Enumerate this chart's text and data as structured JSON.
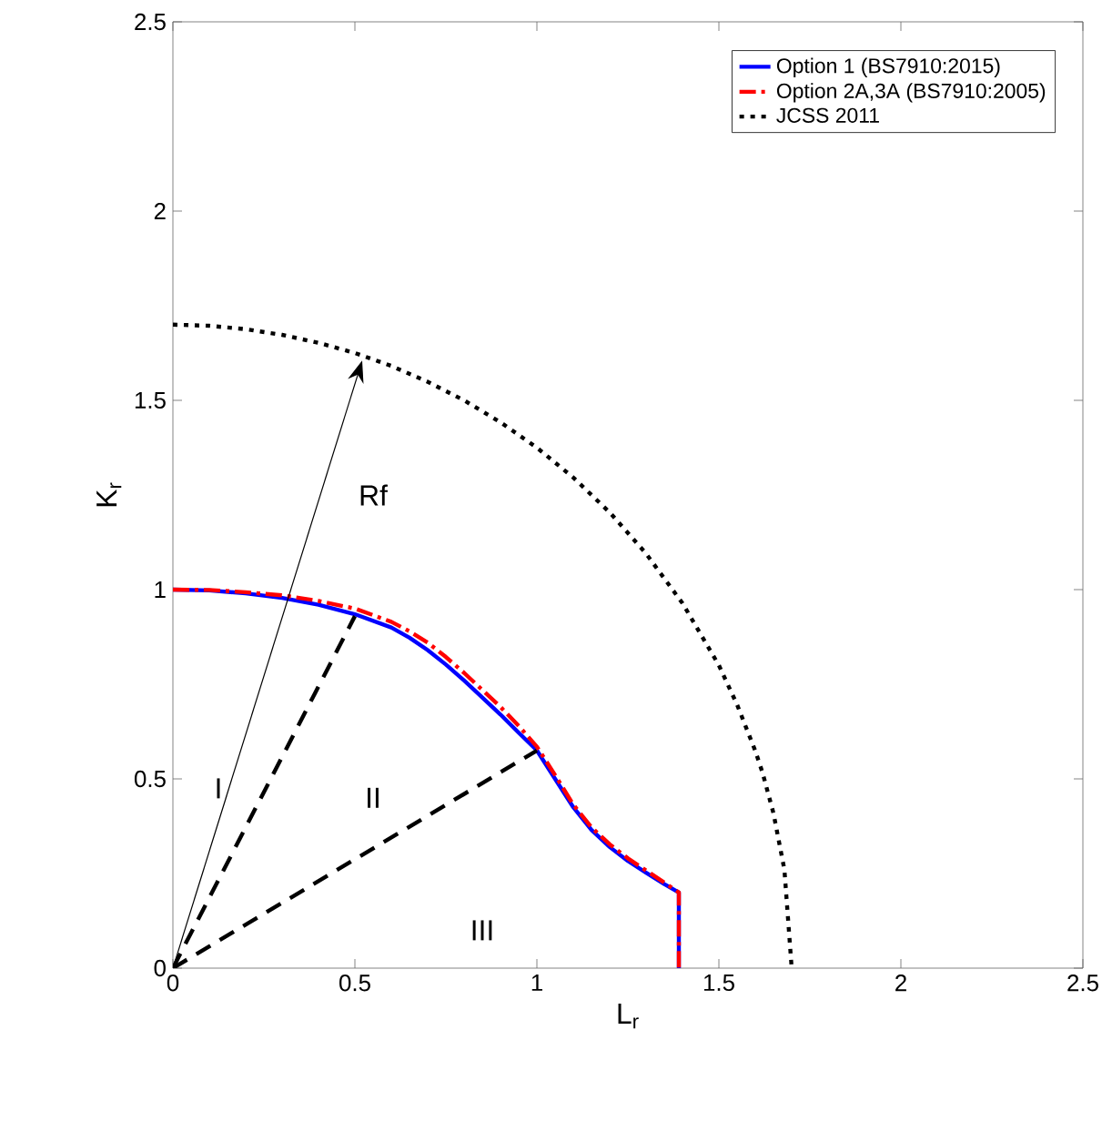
{
  "chart_data": {
    "type": "line",
    "xlabel": "L$_{r}$",
    "ylabel": "K$_{r}$",
    "xlim": [
      0,
      2.5
    ],
    "ylim": [
      0,
      2.5
    ],
    "xticks": [
      0,
      0.5,
      1,
      1.5,
      2,
      2.5
    ],
    "yticks": [
      0,
      0.5,
      1,
      1.5,
      2,
      2.5
    ],
    "grid": false,
    "legend": "top right",
    "marker": "none",
    "series": [
      {
        "name": "Option 1 (BS7910:2015)",
        "color": "#0000ff",
        "line_style": "solid",
        "x": [
          0,
          0.1,
          0.2,
          0.3,
          0.4,
          0.5,
          0.6,
          0.65,
          0.7,
          0.75,
          0.8,
          0.85,
          0.9,
          0.95,
          1.0,
          1.05,
          1.1,
          1.15,
          1.2,
          1.25,
          1.3,
          1.35,
          1.39,
          1.39
        ],
        "values": [
          1,
          0.998,
          0.99,
          0.978,
          0.96,
          0.935,
          0.9,
          0.873,
          0.84,
          0.802,
          0.76,
          0.715,
          0.67,
          0.622,
          0.575,
          0.5,
          0.425,
          0.365,
          0.32,
          0.283,
          0.252,
          0.222,
          0.2,
          0
        ]
      },
      {
        "name": "Option 2A,3A (BS7910:2005)",
        "color": "#ff0000",
        "line_style": "dashdot",
        "x": [
          0,
          0.1,
          0.2,
          0.3,
          0.4,
          0.5,
          0.6,
          0.65,
          0.7,
          0.75,
          0.8,
          0.85,
          0.9,
          0.95,
          1.0,
          1.05,
          1.1,
          1.15,
          1.2,
          1.25,
          1.3,
          1.35,
          1.39,
          1.39
        ],
        "values": [
          1,
          0.999,
          0.993,
          0.985,
          0.97,
          0.95,
          0.915,
          0.89,
          0.86,
          0.822,
          0.78,
          0.735,
          0.69,
          0.64,
          0.585,
          0.51,
          0.432,
          0.372,
          0.327,
          0.29,
          0.258,
          0.226,
          0.2,
          0
        ]
      },
      {
        "name": "JCSS 2011",
        "color": "#000000",
        "line_style": "dotted",
        "x": [
          0,
          0.1,
          0.2,
          0.3,
          0.4,
          0.5,
          0.6,
          0.7,
          0.8,
          0.9,
          1.0,
          1.1,
          1.2,
          1.3,
          1.4,
          1.5,
          1.55,
          1.6,
          1.62,
          1.65,
          1.68,
          1.7
        ],
        "values": [
          1.7,
          1.697,
          1.688,
          1.673,
          1.652,
          1.625,
          1.591,
          1.549,
          1.5,
          1.442,
          1.375,
          1.296,
          1.204,
          1.095,
          0.964,
          0.8,
          0.696,
          0.574,
          0.516,
          0.409,
          0.26,
          0
        ]
      },
      {
        "color": "#000000",
        "line_style": "dashed",
        "x": [
          0,
          0.5
        ],
        "values": [
          0,
          0.93
        ]
      },
      {
        "color": "#000000",
        "line_style": "dashed",
        "x": [
          0,
          1.0
        ],
        "values": [
          0,
          0.575
        ]
      }
    ],
    "annotations": [
      "Rf",
      "I",
      "II",
      "III"
    ]
  }
}
